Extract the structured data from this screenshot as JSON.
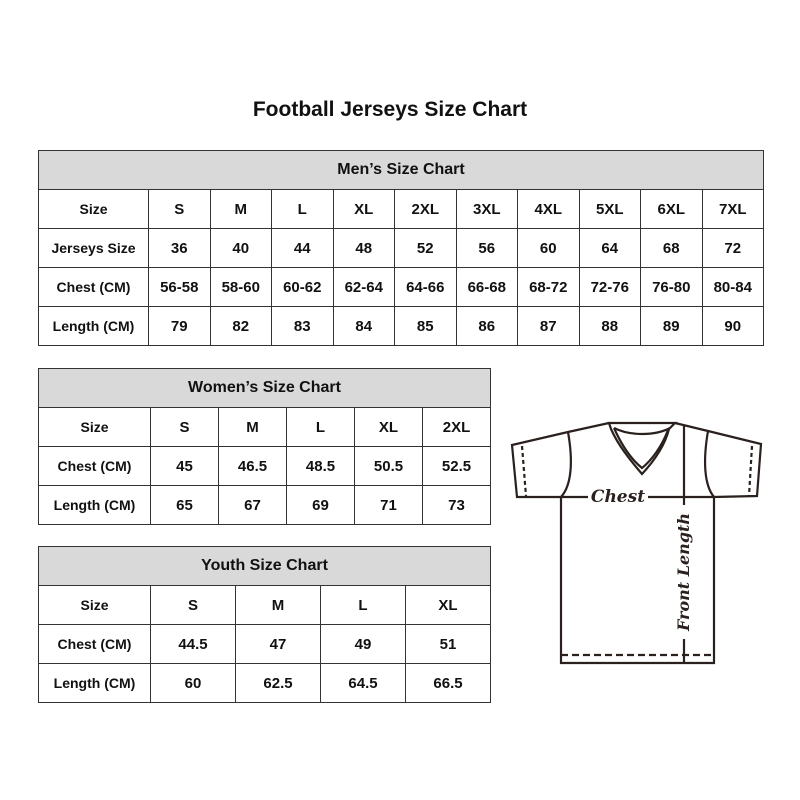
{
  "title": "Football Jerseys Size Chart",
  "men": {
    "heading": "Men’s Size Chart",
    "rows": [
      [
        "Size",
        "S",
        "M",
        "L",
        "XL",
        "2XL",
        "3XL",
        "4XL",
        "5XL",
        "6XL",
        "7XL"
      ],
      [
        "Jerseys Size",
        "36",
        "40",
        "44",
        "48",
        "52",
        "56",
        "60",
        "64",
        "68",
        "72"
      ],
      [
        "Chest (CM)",
        "56-58",
        "58-60",
        "60-62",
        "62-64",
        "64-66",
        "66-68",
        "68-72",
        "72-76",
        "76-80",
        "80-84"
      ],
      [
        "Length (CM)",
        "79",
        "82",
        "83",
        "84",
        "85",
        "86",
        "87",
        "88",
        "89",
        "90"
      ]
    ]
  },
  "women": {
    "heading": "Women’s Size Chart",
    "rows": [
      [
        "Size",
        "S",
        "M",
        "L",
        "XL",
        "2XL"
      ],
      [
        "Chest (CM)",
        "45",
        "46.5",
        "48.5",
        "50.5",
        "52.5"
      ],
      [
        "Length (CM)",
        "65",
        "67",
        "69",
        "71",
        "73"
      ]
    ]
  },
  "youth": {
    "heading": "Youth Size Chart",
    "rows": [
      [
        "Size",
        "S",
        "M",
        "L",
        "XL"
      ],
      [
        "Chest (CM)",
        "44.5",
        "47",
        "49",
        "51"
      ],
      [
        "Length (CM)",
        "60",
        "62.5",
        "64.5",
        "66.5"
      ]
    ]
  },
  "diagram": {
    "chest_label": "Chest",
    "length_label": "Front Length"
  }
}
